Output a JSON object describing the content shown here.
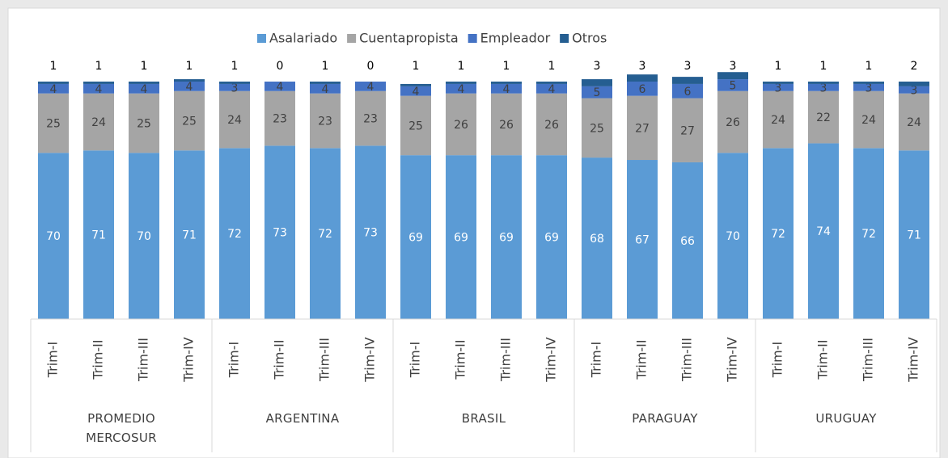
{
  "chart_data": {
    "type": "stacked_bar",
    "categories": [
      "Trim-I",
      "Trim-II",
      "Trim-III",
      "Trim-IV",
      "Trim-I",
      "Trim-II",
      "Trim-III",
      "Trim-IV",
      "Trim-I",
      "Trim-II",
      "Trim-III",
      "Trim-IV",
      "Trim-I",
      "Trim-II",
      "Trim-III",
      "Trim-IV",
      "Trim-I",
      "Trim-II",
      "Trim-III",
      "Trim-IV"
    ],
    "groups": [
      "PROMEDIO MERCOSUR",
      "ARGENTINA",
      "BRASIL",
      "PARAGUAY",
      "URUGUAY"
    ],
    "series": [
      {
        "name": "Asalariado",
        "color": "#5b9bd5",
        "values": [
          70,
          71,
          70,
          71,
          72,
          73,
          72,
          73,
          69,
          69,
          69,
          69,
          68,
          67,
          66,
          70,
          72,
          74,
          72,
          71
        ]
      },
      {
        "name": "Cuentapropista",
        "color": "#a5a5a5",
        "values": [
          25,
          24,
          25,
          25,
          24,
          23,
          23,
          23,
          25,
          26,
          26,
          26,
          25,
          27,
          27,
          26,
          24,
          22,
          24,
          24
        ]
      },
      {
        "name": "Empleador",
        "color": "#4472c4",
        "values": [
          4,
          4,
          4,
          4,
          3,
          4,
          4,
          4,
          4,
          4,
          4,
          4,
          5,
          6,
          6,
          5,
          3,
          3,
          3,
          3
        ]
      },
      {
        "name": "Otros",
        "color": "#255e91",
        "values": [
          1,
          1,
          1,
          1,
          1,
          0,
          1,
          0,
          1,
          1,
          1,
          1,
          3,
          3,
          3,
          3,
          1,
          1,
          1,
          2
        ]
      }
    ],
    "legend": "top"
  }
}
